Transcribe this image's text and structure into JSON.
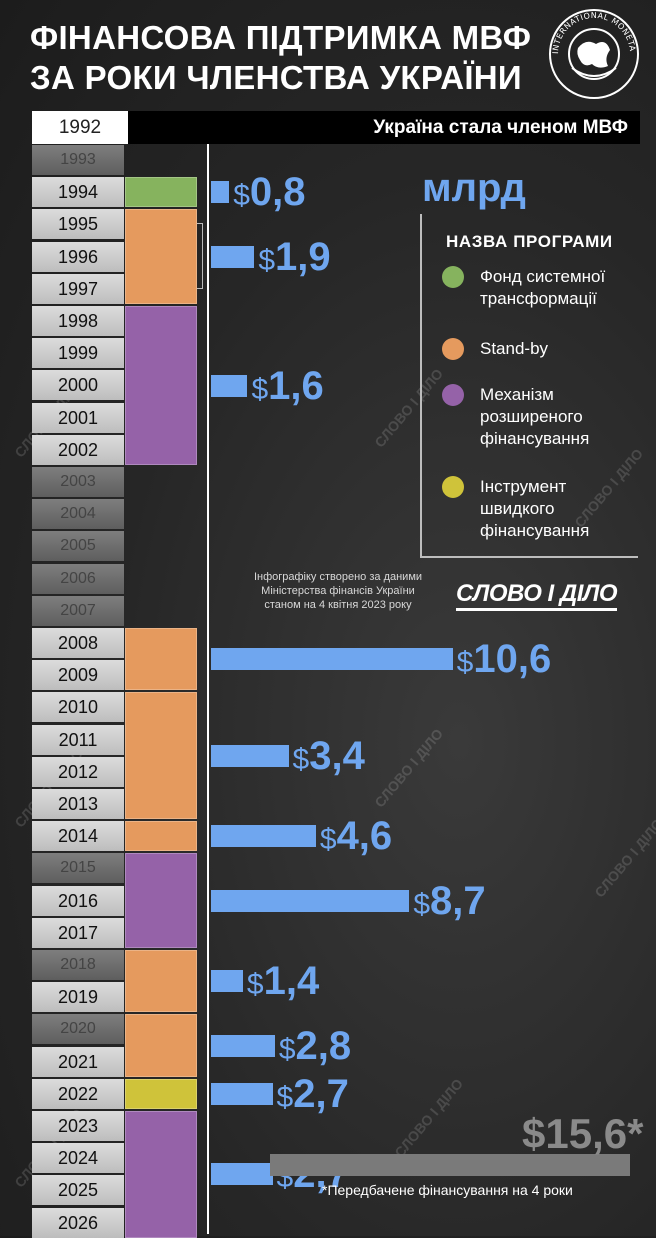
{
  "header": {
    "title_line1": "ФІНАНСОВА ПІДТРИМКА МВФ",
    "title_line2": "ЗА РОКИ ЧЛЕНСТВА УКРАЇНИ",
    "logo_text": "INTERNATIONAL MONETARY FUND"
  },
  "membership": {
    "year": "1992",
    "text": "Україна стала членом МВФ"
  },
  "unit": "млрд",
  "legend": {
    "title": "НАЗВА ПРОГРАМИ",
    "items": [
      {
        "label_line1": "Фонд системної",
        "label_line2": "трансформації",
        "label_line3": "",
        "color": "#86b35e"
      },
      {
        "label_line1": "Stand-by",
        "label_line2": "",
        "label_line3": "",
        "color": "#e59a5e"
      },
      {
        "label_line1": "Механізм",
        "label_line2": "розширеного",
        "label_line3": "фінансування",
        "color": "#9562a8"
      },
      {
        "label_line1": "Інструмент",
        "label_line2": "швидкого",
        "label_line3": "фінансування",
        "color": "#cfc33a"
      }
    ]
  },
  "source": {
    "line1": "Інфографіку створено за даними",
    "line2": "Міністерства фінансів України",
    "line3": "станом на 4 квітня 2023 року"
  },
  "brand": "СЛОВО І ДІЛО",
  "projected": {
    "value": "$15,6*",
    "footnote": "*Передбачене фінансування на 4 роки"
  },
  "chart_data": {
    "type": "bar",
    "orientation": "horizontal",
    "unit": "млрд $",
    "years": [
      "1993",
      "1994",
      "1995",
      "1996",
      "1997",
      "1998",
      "1999",
      "2000",
      "2001",
      "2002",
      "2003",
      "2004",
      "2005",
      "2006",
      "2007",
      "2008",
      "2009",
      "2010",
      "2011",
      "2012",
      "2013",
      "2014",
      "2015",
      "2016",
      "2017",
      "2018",
      "2019",
      "2020",
      "2021",
      "2022",
      "2023",
      "2024",
      "2025",
      "2026"
    ],
    "active_years": [
      "1994",
      "1995",
      "1996",
      "1997",
      "1998",
      "1999",
      "2000",
      "2001",
      "2002",
      "2008",
      "2009",
      "2010",
      "2011",
      "2012",
      "2013",
      "2014",
      "2016",
      "2017",
      "2019",
      "2021",
      "2022",
      "2023",
      "2024",
      "2025",
      "2026"
    ],
    "programs": [
      {
        "name": "Фонд системної трансформації",
        "start": "1994",
        "end": "1994",
        "color": "#86b35e"
      },
      {
        "name": "Stand-by",
        "start": "1995",
        "end": "1997",
        "color": "#e59a5e"
      },
      {
        "name": "Механізм розширеного фінансування",
        "start": "1998",
        "end": "2002",
        "color": "#9562a8"
      },
      {
        "name": "Stand-by",
        "start": "2008",
        "end": "2009",
        "color": "#e59a5e"
      },
      {
        "name": "Stand-by",
        "start": "2010",
        "end": "2013",
        "color": "#e59a5e"
      },
      {
        "name": "Stand-by",
        "start": "2014",
        "end": "2014",
        "color": "#e59a5e"
      },
      {
        "name": "Механізм розширеного фінансування",
        "start": "2015",
        "end": "2017",
        "color": "#9562a8"
      },
      {
        "name": "Stand-by",
        "start": "2018",
        "end": "2019",
        "color": "#e59a5e"
      },
      {
        "name": "Stand-by",
        "start": "2020",
        "end": "2021",
        "color": "#e59a5e"
      },
      {
        "name": "Інструмент швидкого фінансування",
        "start": "2022",
        "end": "2022",
        "color": "#cfc33a"
      },
      {
        "name": "Механізм розширеного фінансування",
        "start": "2023",
        "end": "2026",
        "color": "#9562a8"
      }
    ],
    "disbursements": [
      {
        "years": [
          "1994"
        ],
        "value": 0.8,
        "label": "0,8"
      },
      {
        "years": [
          "1995",
          "1996",
          "1997"
        ],
        "value": 1.9,
        "label": "1,9"
      },
      {
        "years": [
          "1998",
          "1999",
          "2000",
          "2001",
          "2002"
        ],
        "value": 1.6,
        "label": "1,6"
      },
      {
        "years": [
          "2008",
          "2009"
        ],
        "value": 10.6,
        "label": "10,6"
      },
      {
        "years": [
          "2010",
          "2011",
          "2012",
          "2013"
        ],
        "value": 3.4,
        "label": "3,4"
      },
      {
        "years": [
          "2014"
        ],
        "value": 4.6,
        "label": "4,6"
      },
      {
        "years": [
          "2015",
          "2016",
          "2017"
        ],
        "value": 8.7,
        "label": "8,7"
      },
      {
        "years": [
          "2018",
          "2019"
        ],
        "value": 1.4,
        "label": "1,4"
      },
      {
        "years": [
          "2020",
          "2021"
        ],
        "value": 2.8,
        "label": "2,8"
      },
      {
        "years": [
          "2022"
        ],
        "value": 2.7,
        "label": "2,7"
      },
      {
        "years": [
          "2023",
          "2024",
          "2025",
          "2026"
        ],
        "value": 2.7,
        "label": "2,7",
        "projected_total": 15.6
      }
    ]
  }
}
